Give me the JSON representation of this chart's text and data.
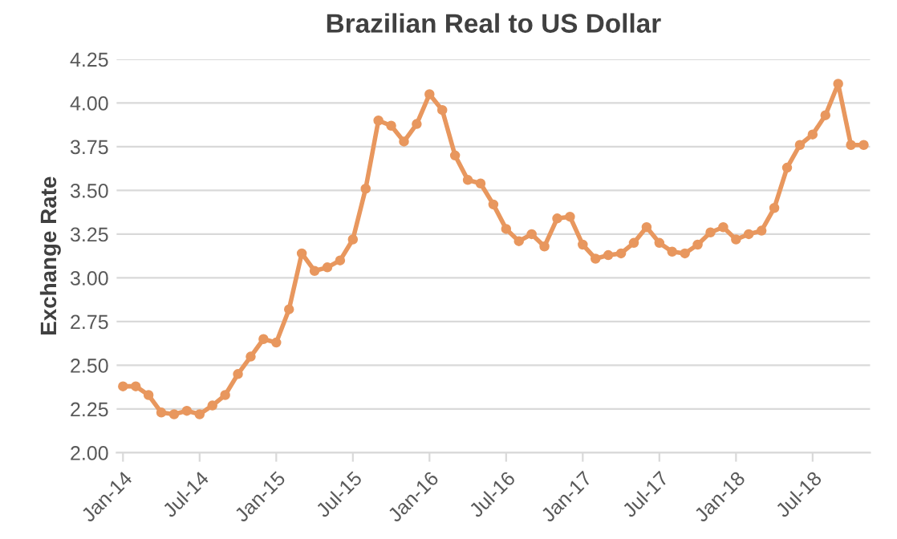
{
  "chart_data": {
    "type": "line",
    "title": "Brazilian Real to US Dollar",
    "ylabel": "Exchange Rate",
    "categories": [
      "Jan-14",
      null,
      null,
      null,
      null,
      null,
      "Jul-14",
      null,
      null,
      null,
      null,
      null,
      "Jan-15",
      null,
      null,
      null,
      null,
      null,
      "Jul-15",
      null,
      null,
      null,
      null,
      null,
      "Jan-16",
      null,
      null,
      null,
      null,
      null,
      "Jul-16",
      null,
      null,
      null,
      null,
      null,
      "Jan-17",
      null,
      null,
      null,
      null,
      null,
      "Jul-17",
      null,
      null,
      null,
      null,
      null,
      "Jan-18",
      null,
      null,
      null,
      null,
      null,
      "Jul-18",
      null,
      null,
      null,
      null
    ],
    "series": [
      {
        "color": "#e8975e",
        "values": [
          2.38,
          2.38,
          2.33,
          2.23,
          2.22,
          2.24,
          2.22,
          2.27,
          2.33,
          2.45,
          2.55,
          2.65,
          2.63,
          2.82,
          3.14,
          3.04,
          3.06,
          3.1,
          3.22,
          3.51,
          3.9,
          3.87,
          3.78,
          3.88,
          4.05,
          3.96,
          3.7,
          3.56,
          3.54,
          3.42,
          3.28,
          3.21,
          3.25,
          3.18,
          3.34,
          3.35,
          3.19,
          3.11,
          3.13,
          3.14,
          3.2,
          3.29,
          3.2,
          3.15,
          3.14,
          3.19,
          3.26,
          3.29,
          3.22,
          3.25,
          3.27,
          3.4,
          3.63,
          3.76,
          3.82,
          3.93,
          4.11,
          3.76,
          3.76
        ]
      }
    ],
    "ylim": [
      2.0,
      4.25
    ],
    "yticks": [
      {
        "value": 2.0,
        "label": "2.00"
      },
      {
        "value": 2.25,
        "label": "2.25"
      },
      {
        "value": 2.5,
        "label": "2.50"
      },
      {
        "value": 2.75,
        "label": "2.75"
      },
      {
        "value": 3.0,
        "label": "3.00"
      },
      {
        "value": 3.25,
        "label": "3.25"
      },
      {
        "value": 3.5,
        "label": "3.50"
      },
      {
        "value": 3.75,
        "label": "3.75"
      },
      {
        "value": 4.0,
        "label": "4.00"
      },
      {
        "value": 4.25,
        "label": "4.25"
      }
    ],
    "grid": "y",
    "marker": "circle",
    "line_style": "solid",
    "legend": false
  }
}
